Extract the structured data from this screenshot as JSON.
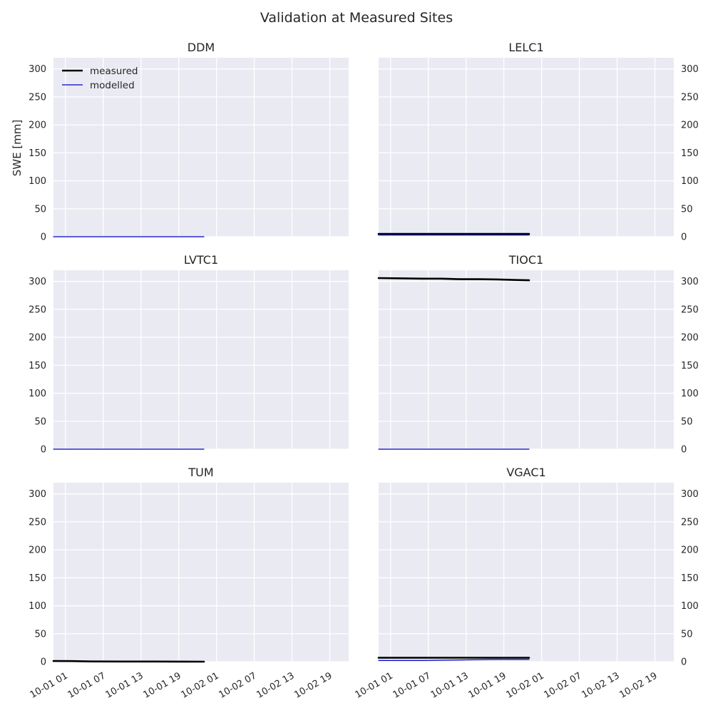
{
  "title": "Validation at Measured Sites",
  "chart_data": {
    "type": "line",
    "title": "Validation at Measured Sites",
    "ylabel": "SWE [mm]",
    "ylim": [
      0,
      320
    ],
    "yticks": [
      0,
      50,
      100,
      150,
      200,
      250,
      300
    ],
    "xlim_hours": [
      -0.9,
      46
    ],
    "xtick_hours": [
      1,
      7,
      13,
      19,
      25,
      31,
      37,
      43
    ],
    "xtick_labels": [
      "10-01 01",
      "10-01 07",
      "10-01 13",
      "10-01 19",
      "10-02 01",
      "10-02 07",
      "10-02 13",
      "10-02 19"
    ],
    "grid": true,
    "legend": {
      "placement": "top-left",
      "entries": [
        "measured",
        "modelled"
      ]
    },
    "series_colors": {
      "measured": "#000000",
      "modelled": "#0000cc"
    },
    "x_unit_note": "x values are hours after 10-01 00:00",
    "panels": [
      {
        "title": "DDM",
        "series": [
          {
            "name": "measured",
            "x": [],
            "y": []
          },
          {
            "name": "modelled",
            "x": [
              -0.9,
              23
            ],
            "y": [
              0,
              0
            ]
          }
        ]
      },
      {
        "title": "LELC1",
        "series": [
          {
            "name": "measured",
            "x": [
              -0.9,
              6,
              12,
              18,
              23
            ],
            "y": [
              5,
              5,
              5,
              5,
              5
            ]
          },
          {
            "name": "modelled",
            "x": [
              -0.9,
              6,
              12,
              18,
              23
            ],
            "y": [
              3,
              3,
              3,
              3,
              3
            ]
          }
        ]
      },
      {
        "title": "LVTC1",
        "series": [
          {
            "name": "measured",
            "x": [],
            "y": []
          },
          {
            "name": "modelled",
            "x": [
              -0.9,
              23
            ],
            "y": [
              0,
              0
            ]
          }
        ]
      },
      {
        "title": "TIOC1",
        "series": [
          {
            "name": "measured",
            "x": [
              -0.9,
              3,
              6,
              9,
              12,
              15,
              18,
              21,
              23
            ],
            "y": [
              306,
              305.5,
              305,
              305,
              304,
              304,
              303.5,
              302.5,
              302
            ]
          },
          {
            "name": "modelled",
            "x": [
              -0.9,
              23
            ],
            "y": [
              0,
              0
            ]
          }
        ]
      },
      {
        "title": "TUM",
        "series": [
          {
            "name": "measured",
            "x": [
              -0.9,
              2,
              5,
              10,
              15,
              20,
              23
            ],
            "y": [
              1.2,
              1.0,
              0.4,
              0.2,
              0.2,
              0.1,
              0
            ]
          },
          {
            "name": "modelled",
            "x": [],
            "y": []
          }
        ]
      },
      {
        "title": "VGAC1",
        "series": [
          {
            "name": "measured",
            "x": [
              -0.9,
              6,
              12,
              18,
              23
            ],
            "y": [
              7,
              7,
              7,
              7,
              7
            ]
          },
          {
            "name": "modelled",
            "x": [
              -0.9,
              6,
              12,
              17,
              23
            ],
            "y": [
              2,
              2,
              3,
              4,
              4
            ]
          }
        ]
      }
    ]
  }
}
